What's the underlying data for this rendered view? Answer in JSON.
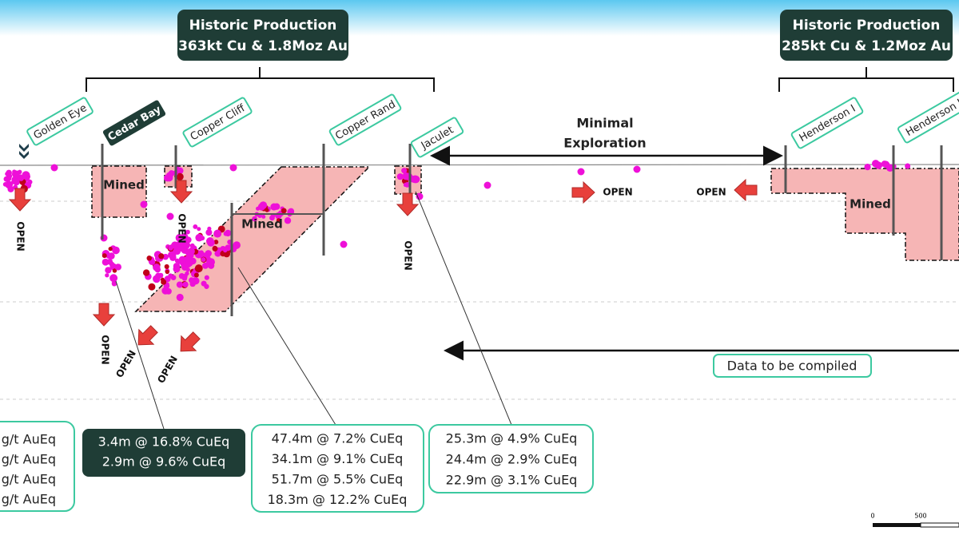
{
  "header_boxes": [
    {
      "title": "Historic Production",
      "subtitle": "363kt Cu & 1.8Moz Au"
    },
    {
      "title": "Historic Production",
      "subtitle": "285kt Cu & 1.2Moz Au"
    }
  ],
  "mines": [
    {
      "label": "Golden Eye"
    },
    {
      "label": "Cedar Bay"
    },
    {
      "label": "Copper Cliff"
    },
    {
      "label": "Copper Rand"
    },
    {
      "label": "Jaculet"
    },
    {
      "label": "Henderson I"
    },
    {
      "label": "Henderson II"
    }
  ],
  "mined_labels": [
    "Mined",
    "Mined",
    "Mined"
  ],
  "open_labels": [
    "OPEN",
    "OPEN",
    "OPEN",
    "OPEN",
    "OPEN",
    "OPEN",
    "OPEN",
    "OPEN"
  ],
  "annotations": {
    "minimal_exploration": [
      "Minimal",
      "Exploration"
    ],
    "data_to_be_compiled": "Data to be compiled"
  },
  "intercept_boxes": [
    {
      "lines": [
        "g/t AuEq",
        "g/t AuEq",
        "g/t AuEq",
        "g/t AuEq"
      ]
    },
    {
      "lines": [
        "3.4m @ 16.8% CuEq",
        "2.9m @ 9.6% CuEq"
      ]
    },
    {
      "lines": [
        "47.4m @ 7.2% CuEq",
        "34.1m @ 9.1% CuEq",
        "51.7m @ 5.5% CuEq",
        "18.3m @ 12.2% CuEq"
      ]
    },
    {
      "lines": [
        "25.3m @ 4.9% CuEq",
        "24.4m @ 2.9% CuEq",
        "22.9m @ 3.1% CuEq"
      ]
    }
  ],
  "scale_bar": {
    "labels": [
      "0",
      "500"
    ]
  }
}
